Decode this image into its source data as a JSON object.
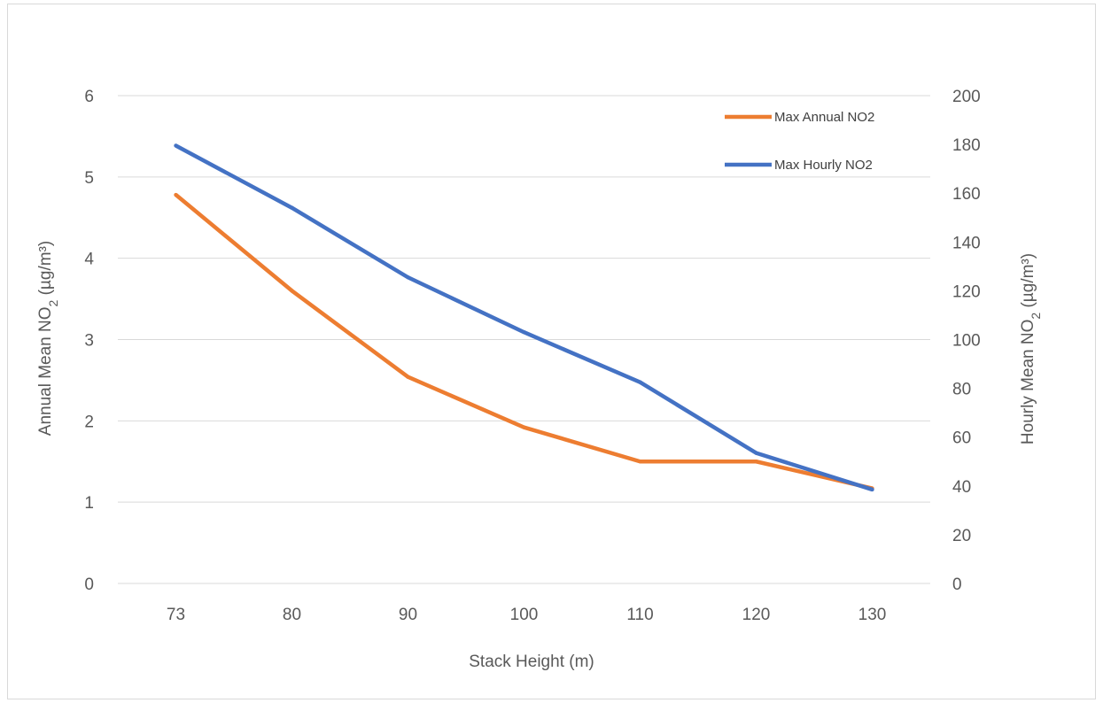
{
  "chart_data": {
    "type": "line",
    "title": "",
    "xlabel": "Stack Height (m)",
    "categories": [
      "73",
      "80",
      "90",
      "100",
      "110",
      "120",
      "130"
    ],
    "y_left": {
      "label_main": "Annual Mean NO",
      "label_sub": "2",
      "label_tail": " (µg/m³)",
      "ticks": [
        "0",
        "1",
        "2",
        "3",
        "4",
        "5",
        "6"
      ],
      "range": [
        0,
        6
      ]
    },
    "y_right": {
      "label_main": "Hourly Mean NO",
      "label_sub": "2",
      "label_tail": " (µg/m³)",
      "ticks": [
        "0",
        "20",
        "40",
        "60",
        "80",
        "100",
        "120",
        "140",
        "160",
        "180",
        "200"
      ],
      "range": [
        0,
        200
      ]
    },
    "series": [
      {
        "name": "Max Annual NO2",
        "axis": "left",
        "color": "#ED7D31",
        "values": [
          4.78,
          3.6,
          2.54,
          1.92,
          1.5,
          1.5,
          1.17
        ]
      },
      {
        "name": "Max Hourly NO2",
        "axis": "right",
        "color": "#4472C4",
        "values": [
          179.5,
          154,
          125.5,
          103,
          82.5,
          53.5,
          38.5
        ]
      }
    ],
    "grid": true,
    "legend_position": "top-right"
  }
}
